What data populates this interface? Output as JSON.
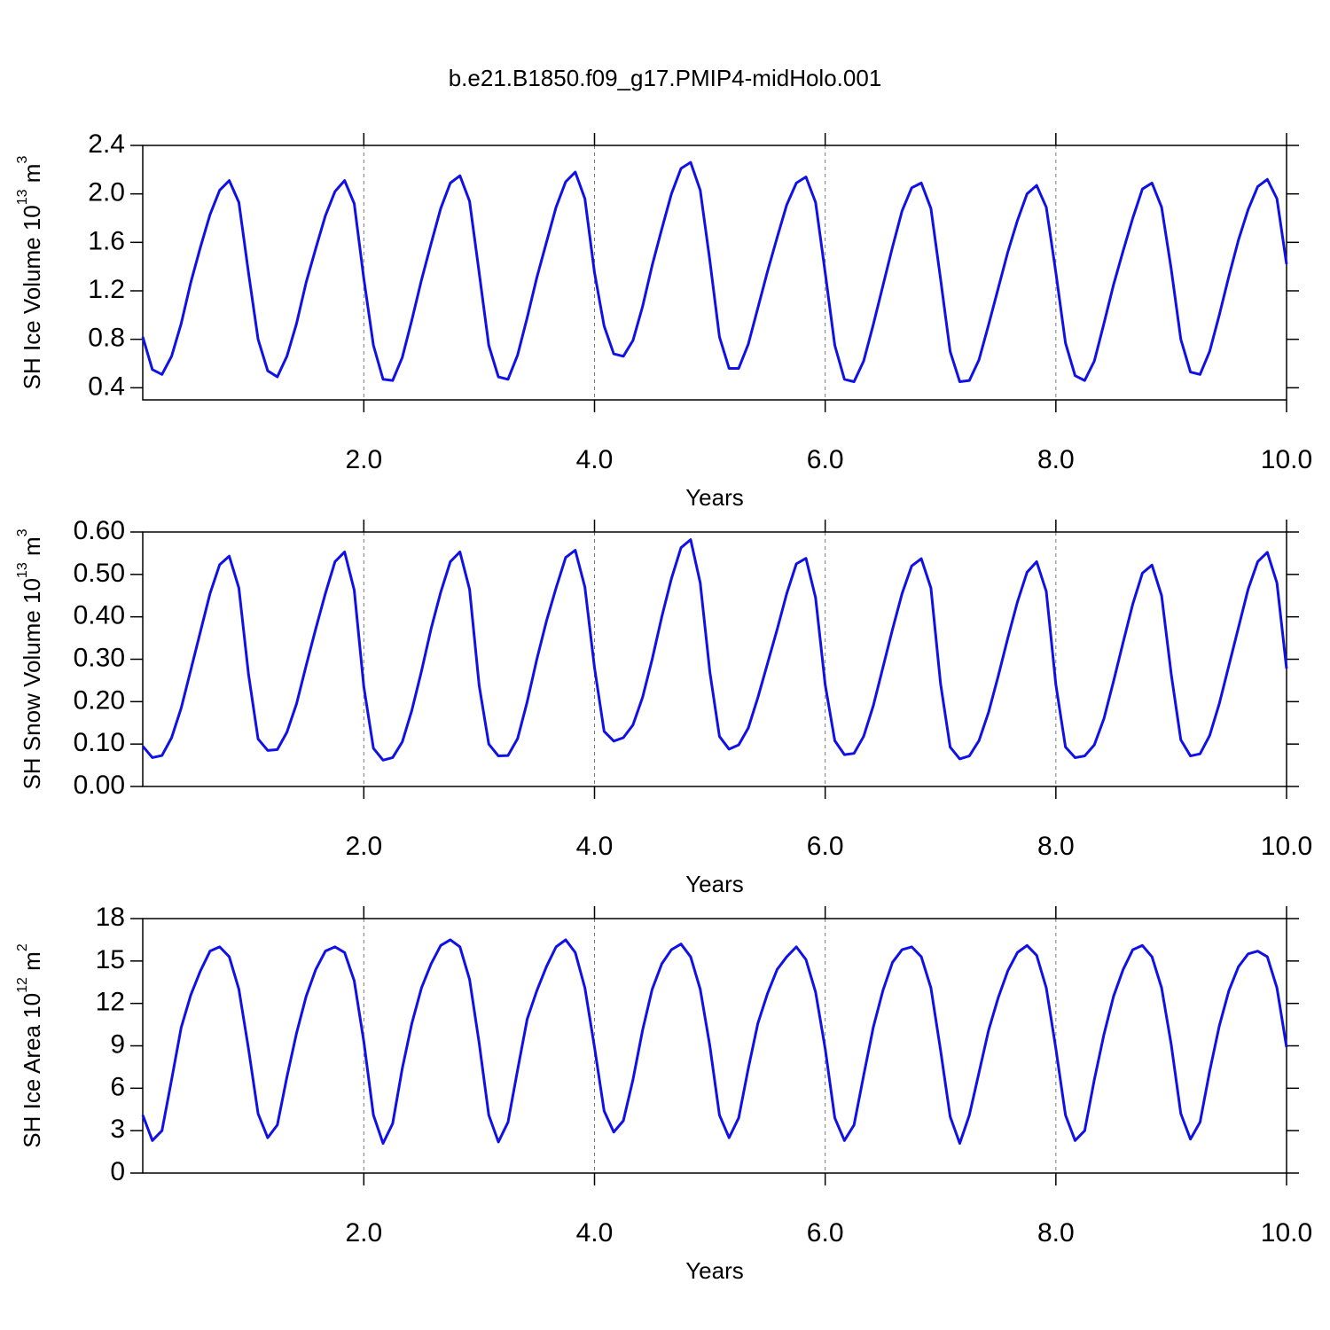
{
  "title": "b.e21.B1850.f09_g17.PMIP4-midHolo.001",
  "chart_data": [
    {
      "type": "line",
      "ylabel": [
        "SH Ice Volume 10",
        "13",
        " m",
        "3"
      ],
      "xlabel": "Years",
      "xlim": [
        0.0833,
        10
      ],
      "ylim": [
        0.3,
        2.4
      ],
      "grid": true,
      "color": "#1010e8",
      "xticks": [
        {
          "value": 2,
          "label": "2.0"
        },
        {
          "value": 4,
          "label": "4.0"
        },
        {
          "value": 6,
          "label": "6.0"
        },
        {
          "value": 8,
          "label": "8.0"
        },
        {
          "value": 10,
          "label": "10.0"
        }
      ],
      "yticks": [
        0.4,
        0.8,
        1.2,
        1.6,
        {
          "value": 2,
          "label": "2.0"
        },
        2.4
      ],
      "x": [
        0.0833,
        0.1667,
        0.25,
        0.3333,
        0.4167,
        0.5,
        0.5833,
        0.6667,
        0.75,
        0.8333,
        0.9167,
        1,
        1.0833,
        1.1667,
        1.25,
        1.3333,
        1.4167,
        1.5,
        1.5833,
        1.6667,
        1.75,
        1.8333,
        1.9167,
        2,
        2.0833,
        2.1667,
        2.25,
        2.3333,
        2.4167,
        2.5,
        2.5833,
        2.6667,
        2.75,
        2.8333,
        2.9167,
        3,
        3.0833,
        3.1667,
        3.25,
        3.3333,
        3.4167,
        3.5,
        3.5833,
        3.6667,
        3.75,
        3.8333,
        3.9167,
        4,
        4.0833,
        4.1667,
        4.25,
        4.3333,
        4.4167,
        4.5,
        4.5833,
        4.6667,
        4.75,
        4.8333,
        4.9167,
        5,
        5.0833,
        5.1667,
        5.25,
        5.3333,
        5.4167,
        5.5,
        5.5833,
        5.6667,
        5.75,
        5.8333,
        5.9167,
        6,
        6.0833,
        6.1667,
        6.25,
        6.3333,
        6.4167,
        6.5,
        6.5833,
        6.6667,
        6.75,
        6.8333,
        6.9167,
        7,
        7.0833,
        7.1667,
        7.25,
        7.3333,
        7.4167,
        7.5,
        7.5833,
        7.6667,
        7.75,
        7.8333,
        7.9167,
        8,
        8.0833,
        8.1667,
        8.25,
        8.3333,
        8.4167,
        8.5,
        8.5833,
        8.6667,
        8.75,
        8.8333,
        8.9167,
        9,
        9.0833,
        9.1667,
        9.25,
        9.3333,
        9.4167,
        9.5,
        9.5833,
        9.6667,
        9.75,
        9.8333,
        9.9167,
        10
      ],
      "values": [
        0.82,
        0.55,
        0.51,
        0.66,
        0.93,
        1.27,
        1.56,
        1.83,
        2.03,
        2.11,
        1.93,
        1.35,
        0.8,
        0.54,
        0.49,
        0.66,
        0.93,
        1.27,
        1.55,
        1.82,
        2.02,
        2.11,
        1.92,
        1.3,
        0.75,
        0.47,
        0.46,
        0.65,
        0.96,
        1.29,
        1.59,
        1.88,
        2.09,
        2.15,
        1.94,
        1.35,
        0.75,
        0.49,
        0.47,
        0.67,
        0.98,
        1.31,
        1.6,
        1.89,
        2.1,
        2.18,
        1.96,
        1.35,
        0.91,
        0.68,
        0.66,
        0.79,
        1.07,
        1.41,
        1.71,
        2.0,
        2.21,
        2.26,
        2.03,
        1.45,
        0.82,
        0.56,
        0.56,
        0.76,
        1.06,
        1.36,
        1.64,
        1.91,
        2.09,
        2.14,
        1.93,
        1.35,
        0.75,
        0.47,
        0.45,
        0.62,
        0.92,
        1.24,
        1.56,
        1.86,
        2.05,
        2.09,
        1.88,
        1.3,
        0.7,
        0.45,
        0.46,
        0.63,
        0.92,
        1.22,
        1.52,
        1.78,
        2.0,
        2.07,
        1.89,
        1.35,
        0.77,
        0.5,
        0.46,
        0.62,
        0.93,
        1.25,
        1.53,
        1.8,
        2.04,
        2.09,
        1.89,
        1.38,
        0.8,
        0.53,
        0.51,
        0.7,
        1.0,
        1.32,
        1.62,
        1.87,
        2.06,
        2.12,
        1.96,
        1.42
      ]
    },
    {
      "type": "line",
      "ylabel": [
        "SH Snow Volume 10",
        "13",
        " m",
        "3"
      ],
      "xlabel": "Years",
      "xlim": [
        0.0833,
        10
      ],
      "ylim": [
        0,
        0.6
      ],
      "grid": true,
      "color": "#1010e8",
      "xticks": [
        {
          "value": 2,
          "label": "2.0"
        },
        {
          "value": 4,
          "label": "4.0"
        },
        {
          "value": 6,
          "label": "6.0"
        },
        {
          "value": 8,
          "label": "8.0"
        },
        {
          "value": 10,
          "label": "10.0"
        }
      ],
      "yticks": [
        {
          "value": 0,
          "label": "0.00"
        },
        {
          "value": 0.1,
          "label": "0.10"
        },
        {
          "value": 0.2,
          "label": "0.20"
        },
        {
          "value": 0.3,
          "label": "0.30"
        },
        {
          "value": 0.4,
          "label": "0.40"
        },
        {
          "value": 0.5,
          "label": "0.50"
        },
        {
          "value": 0.6,
          "label": "0.60"
        }
      ],
      "x": [
        0.0833,
        0.1667,
        0.25,
        0.3333,
        0.4167,
        0.5,
        0.5833,
        0.6667,
        0.75,
        0.8333,
        0.9167,
        1,
        1.0833,
        1.1667,
        1.25,
        1.3333,
        1.4167,
        1.5,
        1.5833,
        1.6667,
        1.75,
        1.8333,
        1.9167,
        2,
        2.0833,
        2.1667,
        2.25,
        2.3333,
        2.4167,
        2.5,
        2.5833,
        2.6667,
        2.75,
        2.8333,
        2.9167,
        3,
        3.0833,
        3.1667,
        3.25,
        3.3333,
        3.4167,
        3.5,
        3.5833,
        3.6667,
        3.75,
        3.8333,
        3.9167,
        4,
        4.0833,
        4.1667,
        4.25,
        4.3333,
        4.4167,
        4.5,
        4.5833,
        4.6667,
        4.75,
        4.8333,
        4.9167,
        5,
        5.0833,
        5.1667,
        5.25,
        5.3333,
        5.4167,
        5.5,
        5.5833,
        5.6667,
        5.75,
        5.8333,
        5.9167,
        6,
        6.0833,
        6.1667,
        6.25,
        6.3333,
        6.4167,
        6.5,
        6.5833,
        6.6667,
        6.75,
        6.8333,
        6.9167,
        7,
        7.0833,
        7.1667,
        7.25,
        7.3333,
        7.4167,
        7.5,
        7.5833,
        7.6667,
        7.75,
        7.8333,
        7.9167,
        8,
        8.0833,
        8.1667,
        8.25,
        8.3333,
        8.4167,
        8.5,
        8.5833,
        8.6667,
        8.75,
        8.8333,
        8.9167,
        9,
        9.0833,
        9.1667,
        9.25,
        9.3333,
        9.4167,
        9.5,
        9.5833,
        9.6667,
        9.75,
        9.8333,
        9.9167,
        10
      ],
      "values": [
        0.095,
        0.068,
        0.073,
        0.115,
        0.185,
        0.275,
        0.365,
        0.455,
        0.523,
        0.543,
        0.468,
        0.265,
        0.112,
        0.085,
        0.087,
        0.128,
        0.195,
        0.285,
        0.372,
        0.455,
        0.53,
        0.553,
        0.463,
        0.235,
        0.09,
        0.062,
        0.068,
        0.105,
        0.18,
        0.272,
        0.372,
        0.458,
        0.53,
        0.553,
        0.465,
        0.238,
        0.1,
        0.072,
        0.073,
        0.113,
        0.2,
        0.3,
        0.39,
        0.468,
        0.54,
        0.557,
        0.47,
        0.28,
        0.13,
        0.107,
        0.115,
        0.145,
        0.21,
        0.3,
        0.4,
        0.49,
        0.563,
        0.582,
        0.48,
        0.27,
        0.118,
        0.088,
        0.098,
        0.138,
        0.21,
        0.29,
        0.37,
        0.455,
        0.525,
        0.538,
        0.445,
        0.24,
        0.108,
        0.075,
        0.078,
        0.118,
        0.19,
        0.28,
        0.37,
        0.455,
        0.52,
        0.537,
        0.468,
        0.243,
        0.093,
        0.065,
        0.072,
        0.108,
        0.175,
        0.26,
        0.35,
        0.435,
        0.505,
        0.53,
        0.46,
        0.24,
        0.093,
        0.068,
        0.072,
        0.098,
        0.16,
        0.248,
        0.34,
        0.43,
        0.503,
        0.522,
        0.45,
        0.265,
        0.11,
        0.072,
        0.077,
        0.12,
        0.195,
        0.285,
        0.375,
        0.465,
        0.53,
        0.552,
        0.48,
        0.278
      ]
    },
    {
      "type": "line",
      "ylabel": [
        "SH Ice Area 10",
        "12",
        " m",
        "2"
      ],
      "xlabel": "Years",
      "xlim": [
        0.0833,
        10
      ],
      "ylim": [
        0,
        18
      ],
      "grid": true,
      "color": "#1010e8",
      "xticks": [
        {
          "value": 2,
          "label": "2.0"
        },
        {
          "value": 4,
          "label": "4.0"
        },
        {
          "value": 6,
          "label": "6.0"
        },
        {
          "value": 8,
          "label": "8.0"
        },
        {
          "value": 10,
          "label": "10.0"
        }
      ],
      "yticks": [
        0,
        3,
        6,
        9,
        12,
        15,
        18
      ],
      "x": [
        0.0833,
        0.1667,
        0.25,
        0.3333,
        0.4167,
        0.5,
        0.5833,
        0.6667,
        0.75,
        0.8333,
        0.9167,
        1,
        1.0833,
        1.1667,
        1.25,
        1.3333,
        1.4167,
        1.5,
        1.5833,
        1.6667,
        1.75,
        1.8333,
        1.9167,
        2,
        2.0833,
        2.1667,
        2.25,
        2.3333,
        2.4167,
        2.5,
        2.5833,
        2.6667,
        2.75,
        2.8333,
        2.9167,
        3,
        3.0833,
        3.1667,
        3.25,
        3.3333,
        3.4167,
        3.5,
        3.5833,
        3.6667,
        3.75,
        3.8333,
        3.9167,
        4,
        4.0833,
        4.1667,
        4.25,
        4.3333,
        4.4167,
        4.5,
        4.5833,
        4.6667,
        4.75,
        4.8333,
        4.9167,
        5,
        5.0833,
        5.1667,
        5.25,
        5.3333,
        5.4167,
        5.5,
        5.5833,
        5.6667,
        5.75,
        5.8333,
        5.9167,
        6,
        6.0833,
        6.1667,
        6.25,
        6.3333,
        6.4167,
        6.5,
        6.5833,
        6.6667,
        6.75,
        6.8333,
        6.9167,
        7,
        7.0833,
        7.1667,
        7.25,
        7.3333,
        7.4167,
        7.5,
        7.5833,
        7.6667,
        7.75,
        7.8333,
        7.9167,
        8,
        8.0833,
        8.1667,
        8.25,
        8.3333,
        8.4167,
        8.5,
        8.5833,
        8.6667,
        8.75,
        8.8333,
        8.9167,
        9,
        9.0833,
        9.1667,
        9.25,
        9.3333,
        9.4167,
        9.5,
        9.5833,
        9.6667,
        9.75,
        9.8333,
        9.9167,
        10
      ],
      "values": [
        4.1,
        2.3,
        3.0,
        6.6,
        10.3,
        12.6,
        14.3,
        15.7,
        16.0,
        15.3,
        13.0,
        8.8,
        4.2,
        2.5,
        3.4,
        6.8,
        9.9,
        12.5,
        14.4,
        15.7,
        16.0,
        15.6,
        13.6,
        9.3,
        4.1,
        2.1,
        3.5,
        7.4,
        10.6,
        13.1,
        14.8,
        16.1,
        16.5,
        16.0,
        13.7,
        9.2,
        4.1,
        2.2,
        3.6,
        7.3,
        10.9,
        12.9,
        14.6,
        16.0,
        16.5,
        15.6,
        13.1,
        8.9,
        4.4,
        2.9,
        3.7,
        6.6,
        10.1,
        13.0,
        14.8,
        15.8,
        16.2,
        15.3,
        13.0,
        9.0,
        4.1,
        2.5,
        3.9,
        7.4,
        10.6,
        12.7,
        14.4,
        15.3,
        16.0,
        15.1,
        12.8,
        8.8,
        3.9,
        2.3,
        3.4,
        6.9,
        10.3,
        12.9,
        14.9,
        15.8,
        16.0,
        15.3,
        13.1,
        8.7,
        4.0,
        2.1,
        4.1,
        7.1,
        10.1,
        12.4,
        14.3,
        15.6,
        16.1,
        15.4,
        13.1,
        8.8,
        4.1,
        2.3,
        3.0,
        6.6,
        9.8,
        12.5,
        14.4,
        15.8,
        16.1,
        15.3,
        13.1,
        9.1,
        4.2,
        2.4,
        3.6,
        7.2,
        10.4,
        12.9,
        14.6,
        15.5,
        15.7,
        15.3,
        13.1,
        8.9
      ]
    }
  ]
}
